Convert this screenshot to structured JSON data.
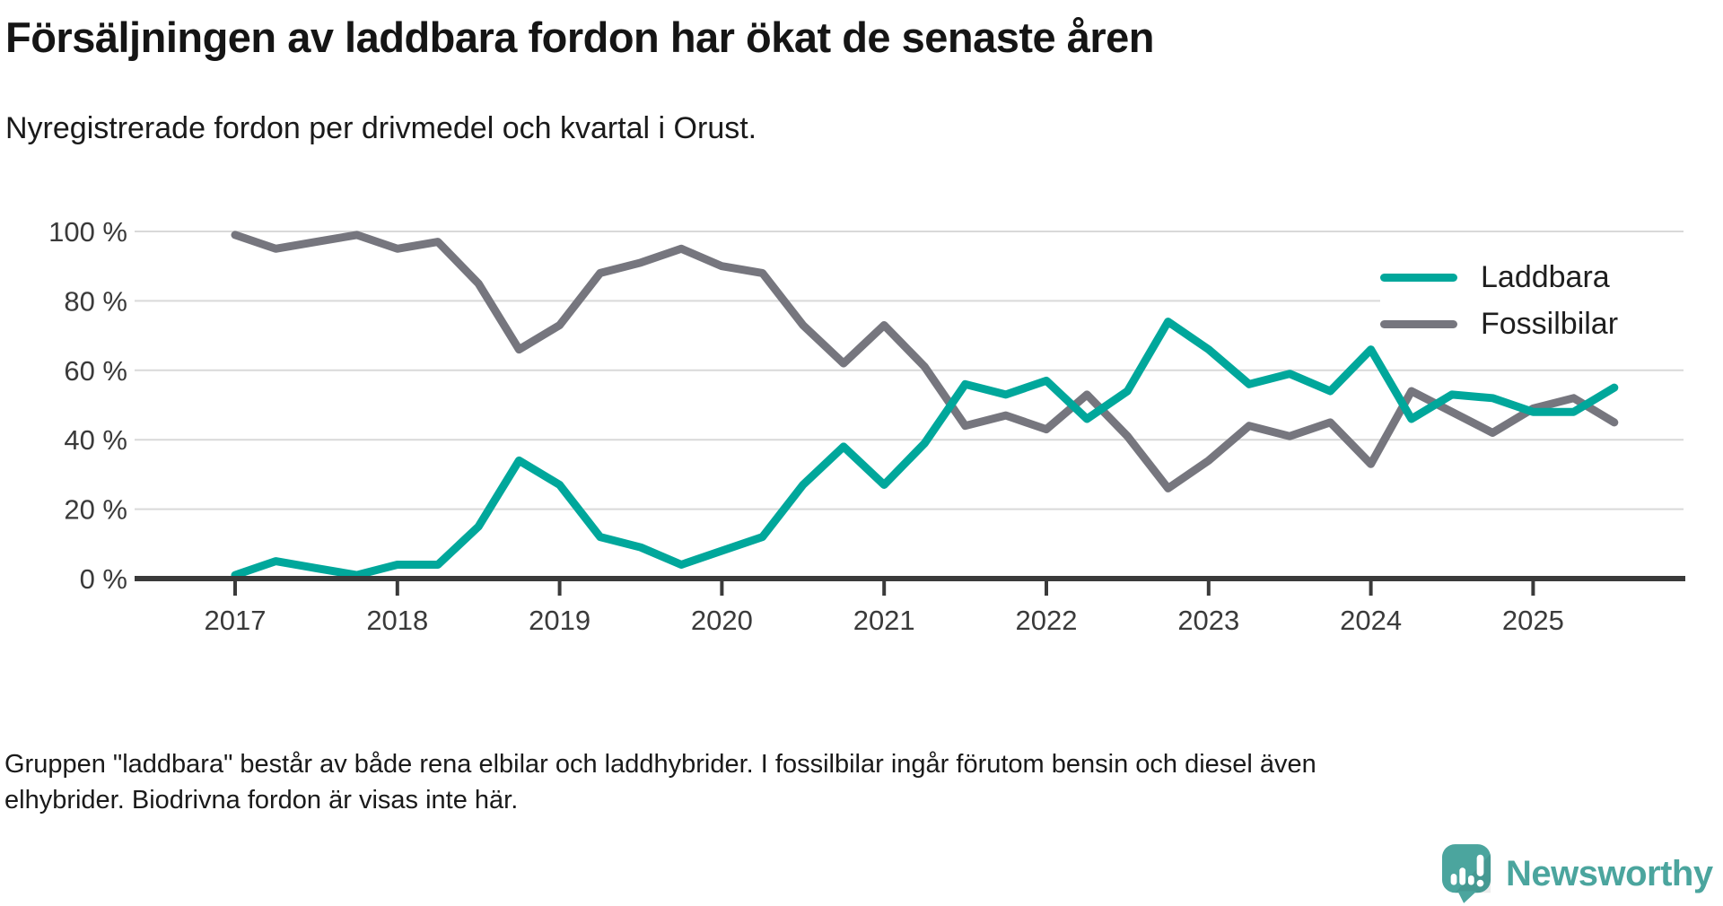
{
  "header": {
    "title": "Försäljningen av laddbara fordon har ökat de senaste åren",
    "subtitle": "Nyregistrerade fordon per drivmedel och kvartal i Orust."
  },
  "chart_data": {
    "type": "line",
    "title": "Nyregistrerade fordon per drivmedel och kvartal i Orust",
    "x_unit": "quarter",
    "categories": [
      "2017 Q1",
      "2017 Q2",
      "2017 Q3",
      "2017 Q4",
      "2018 Q1",
      "2018 Q2",
      "2018 Q3",
      "2018 Q4",
      "2019 Q1",
      "2019 Q2",
      "2019 Q3",
      "2019 Q4",
      "2020 Q1",
      "2020 Q2",
      "2020 Q3",
      "2020 Q4",
      "2021 Q1",
      "2021 Q2",
      "2021 Q3",
      "2021 Q4",
      "2022 Q1",
      "2022 Q2",
      "2022 Q3",
      "2022 Q4",
      "2023 Q1",
      "2023 Q2",
      "2023 Q3",
      "2023 Q4",
      "2024 Q1",
      "2024 Q2",
      "2024 Q3",
      "2024 Q4",
      "2025 Q1",
      "2025 Q2",
      "2025 Q3"
    ],
    "series": [
      {
        "name": "Laddbara",
        "color": "#00A79B",
        "values": [
          1,
          5,
          3,
          1,
          4,
          4,
          15,
          34,
          27,
          12,
          9,
          4,
          8,
          12,
          27,
          38,
          27,
          39,
          56,
          53,
          57,
          46,
          54,
          74,
          66,
          56,
          59,
          54,
          66,
          46,
          53,
          52,
          48,
          48,
          55
        ]
      },
      {
        "name": "Fossilbilar",
        "color": "#76767E",
        "values": [
          99,
          95,
          97,
          99,
          95,
          97,
          85,
          66,
          73,
          88,
          91,
          95,
          90,
          88,
          73,
          62,
          73,
          61,
          44,
          47,
          43,
          53,
          41,
          26,
          34,
          44,
          41,
          45,
          33,
          54,
          48,
          42,
          49,
          52,
          45
        ]
      }
    ],
    "ylim": [
      0,
      100
    ],
    "y_ticks": [
      "100 %",
      "80 %",
      "60 %",
      "40 %",
      "20 %",
      "0 %"
    ],
    "x_ticks": [
      "2017",
      "2018",
      "2019",
      "2020",
      "2021",
      "2022",
      "2023",
      "2024",
      "2025"
    ],
    "grid": "horizontal",
    "legend_position": "right-top",
    "unit": "percent"
  },
  "footnote": {
    "line1": "Gruppen \"laddbara\" består av både rena elbilar och laddhybrider. I fossilbilar ingår förutom bensin och diesel även",
    "line2": "elhybrider. Biodrivna fordon är visas inte här."
  },
  "logo": {
    "name": "Newsworthy",
    "color": "#4BA59E"
  }
}
